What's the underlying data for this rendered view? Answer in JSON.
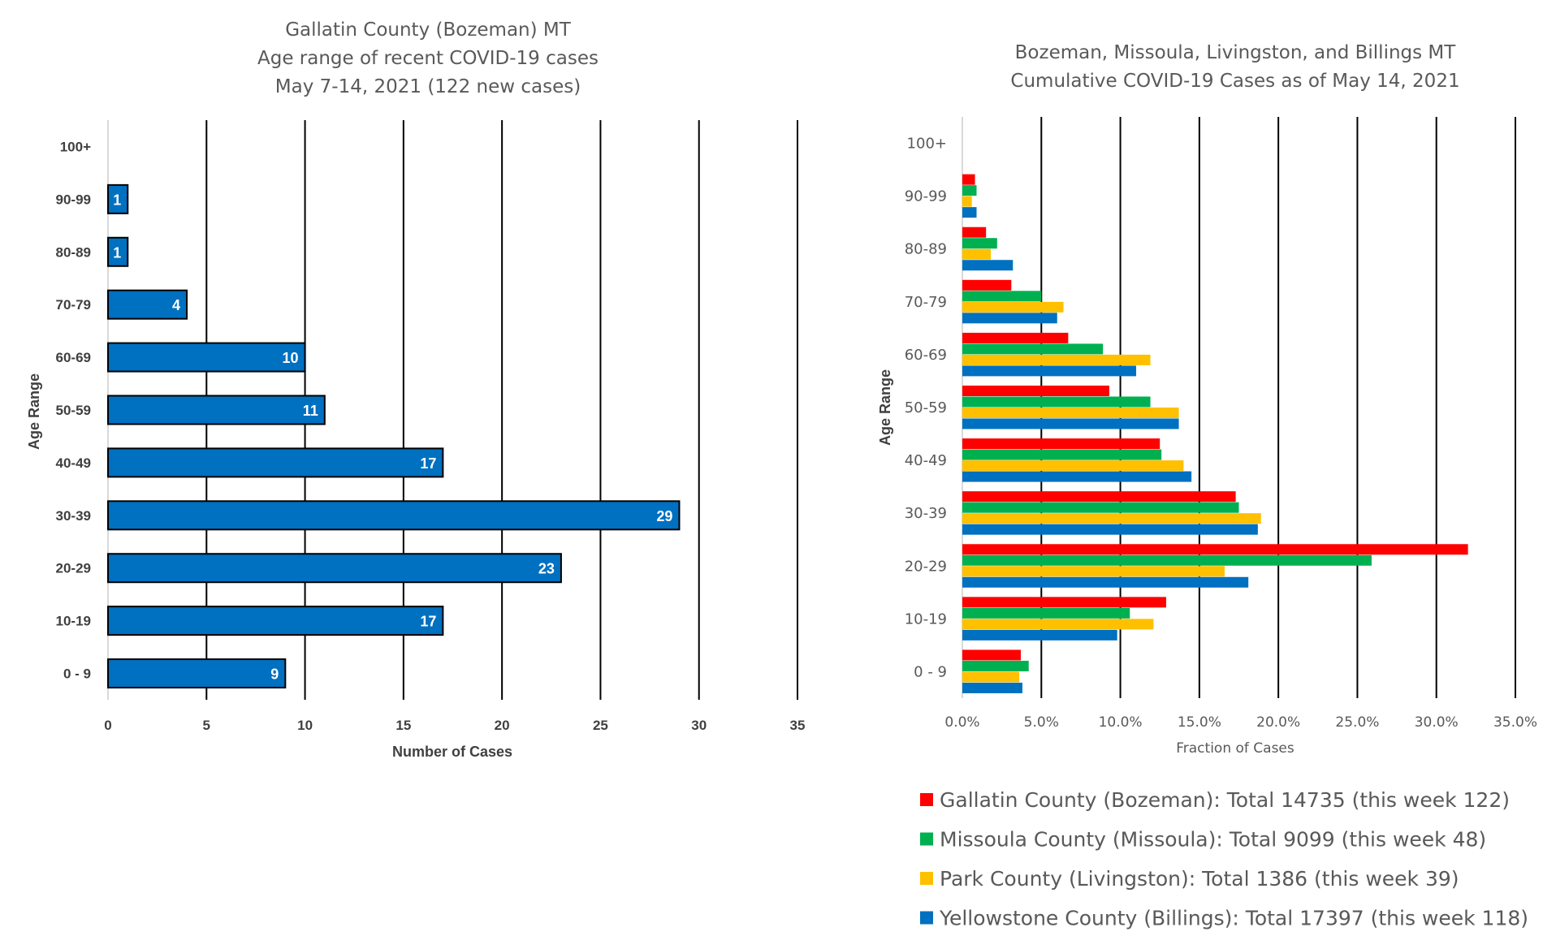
{
  "chart_data": [
    {
      "type": "bar",
      "orientation": "horizontal",
      "title": "Gallatin County (Bozeman) MT",
      "subtitle_lines": [
        "Age range of recent COVID-19 cases",
        "May 7-14, 2021 (122 new cases)"
      ],
      "xlabel": "Number of Cases",
      "ylabel": "Age Range",
      "categories": [
        "0 - 9",
        "10-19",
        "20-29",
        "30-39",
        "40-49",
        "50-59",
        "60-69",
        "70-79",
        "80-89",
        "90-99",
        "100+"
      ],
      "values": [
        9,
        17,
        23,
        29,
        17,
        11,
        10,
        4,
        1,
        1,
        0
      ],
      "data_labels": [
        "9",
        "17",
        "23",
        "29",
        "17",
        "11",
        "10",
        "4",
        "1",
        "1",
        ""
      ],
      "xlim": [
        0,
        35
      ],
      "xticks": [
        0,
        5,
        10,
        15,
        20,
        25,
        30,
        35
      ],
      "xtick_labels": [
        "0",
        "5",
        "10",
        "15",
        "20",
        "25",
        "30",
        "35"
      ],
      "bar_color": "#0070C0",
      "grid": "vertical"
    },
    {
      "type": "bar",
      "orientation": "horizontal",
      "title": "Bozeman, Missoula, Livingston, and Billings MT",
      "subtitle_lines": [
        "Cumulative COVID-19 Cases as of May 14, 2021"
      ],
      "xlabel": "Fraction of Cases",
      "ylabel": "Age Range",
      "categories": [
        "0 - 9",
        "10-19",
        "20-29",
        "30-39",
        "40-49",
        "50-59",
        "60-69",
        "70-79",
        "80-89",
        "90-99",
        "100+"
      ],
      "xlim": [
        0,
        35
      ],
      "xticks": [
        0,
        5,
        10,
        15,
        20,
        25,
        30,
        35
      ],
      "xtick_labels": [
        "0.0%",
        "5.0%",
        "10.0%",
        "15.0%",
        "20.0%",
        "25.0%",
        "30.0%",
        "35.0%"
      ],
      "grid": "vertical",
      "legend_position": "bottom",
      "series": [
        {
          "name": "Gallatin County (Bozeman): Total 14735 (this week 122)",
          "color": "#FF0000",
          "values": [
            3.7,
            12.9,
            32.0,
            17.3,
            12.5,
            9.3,
            6.7,
            3.1,
            1.5,
            0.8,
            0.0
          ]
        },
        {
          "name": "Missoula County (Missoula): Total 9099 (this week 48)",
          "color": "#00B050",
          "values": [
            4.2,
            10.6,
            25.9,
            17.5,
            12.6,
            11.9,
            8.9,
            5.0,
            2.2,
            0.9,
            0.0
          ]
        },
        {
          "name": "Park County (Livingston): Total 1386 (this week 39)",
          "color": "#FFC000",
          "values": [
            3.6,
            12.1,
            16.6,
            18.9,
            14.0,
            13.7,
            11.9,
            6.4,
            1.8,
            0.6,
            0.0
          ]
        },
        {
          "name": "Yellowstone County (Billings): Total 17397 (this week 118)",
          "color": "#0070C0",
          "values": [
            3.8,
            9.8,
            18.1,
            18.7,
            14.5,
            13.7,
            11.0,
            6.0,
            3.2,
            0.9,
            0.0
          ]
        }
      ]
    }
  ]
}
